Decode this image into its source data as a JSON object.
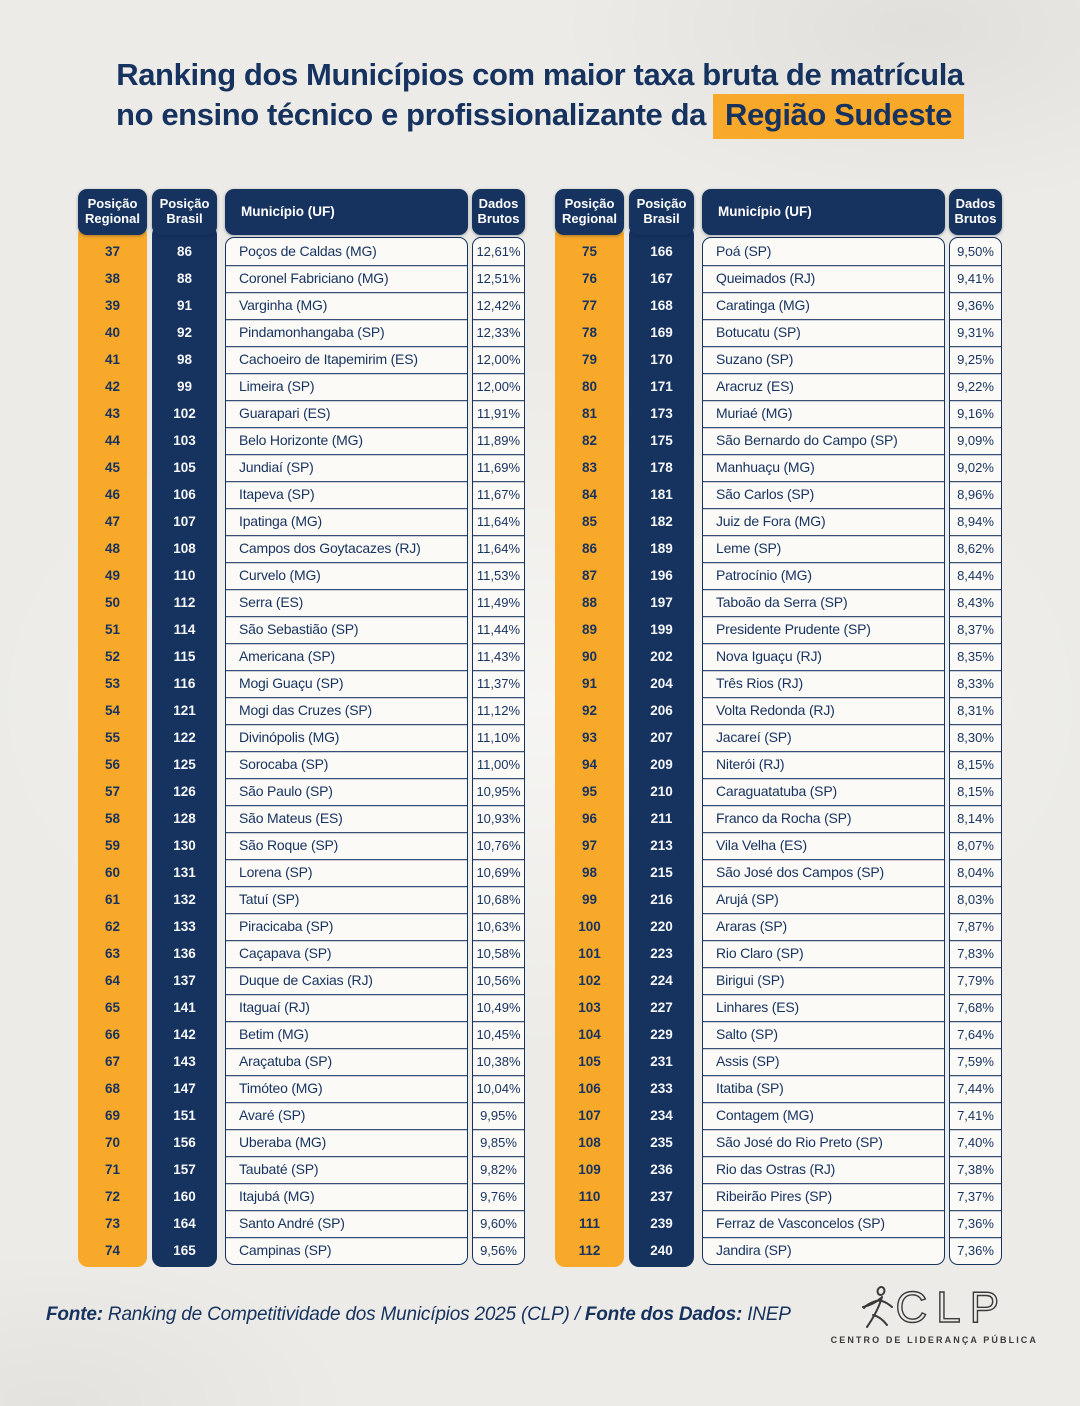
{
  "title": {
    "line1": "Ranking dos Municípios com maior taxa bruta de matrícula",
    "line2": "no ensino técnico e profissionalizante da",
    "highlight": "Região Sudeste"
  },
  "table_headers": {
    "regional": "Posição Regional",
    "brasil": "Posição Brasil",
    "municipio": "Município (UF)",
    "dados": "Dados Brutos"
  },
  "chart_data": {
    "type": "table",
    "title": "Ranking dos Municípios com maior taxa bruta de matrícula no ensino técnico e profissionalizante da Região Sudeste",
    "columns": [
      "Posição Regional",
      "Posição Brasil",
      "Município (UF)",
      "Dados Brutos"
    ],
    "rows_left": [
      [
        "37",
        "86",
        "Poços de Caldas (MG)",
        "12,61%"
      ],
      [
        "38",
        "88",
        "Coronel Fabriciano (MG)",
        "12,51%"
      ],
      [
        "39",
        "91",
        "Varginha (MG)",
        "12,42%"
      ],
      [
        "40",
        "92",
        "Pindamonhangaba (SP)",
        "12,33%"
      ],
      [
        "41",
        "98",
        "Cachoeiro de Itapemirim (ES)",
        "12,00%"
      ],
      [
        "42",
        "99",
        "Limeira (SP)",
        "12,00%"
      ],
      [
        "43",
        "102",
        "Guarapari (ES)",
        "11,91%"
      ],
      [
        "44",
        "103",
        "Belo Horizonte (MG)",
        "11,89%"
      ],
      [
        "45",
        "105",
        "Jundiaí (SP)",
        "11,69%"
      ],
      [
        "46",
        "106",
        "Itapeva (SP)",
        "11,67%"
      ],
      [
        "47",
        "107",
        "Ipatinga (MG)",
        "11,64%"
      ],
      [
        "48",
        "108",
        "Campos dos Goytacazes (RJ)",
        "11,64%"
      ],
      [
        "49",
        "110",
        "Curvelo (MG)",
        "11,53%"
      ],
      [
        "50",
        "112",
        "Serra (ES)",
        "11,49%"
      ],
      [
        "51",
        "114",
        "São Sebastião (SP)",
        "11,44%"
      ],
      [
        "52",
        "115",
        "Americana (SP)",
        "11,43%"
      ],
      [
        "53",
        "116",
        "Mogi Guaçu (SP)",
        "11,37%"
      ],
      [
        "54",
        "121",
        "Mogi das Cruzes (SP)",
        "11,12%"
      ],
      [
        "55",
        "122",
        "Divinópolis (MG)",
        "11,10%"
      ],
      [
        "56",
        "125",
        "Sorocaba (SP)",
        "11,00%"
      ],
      [
        "57",
        "126",
        "São Paulo (SP)",
        "10,95%"
      ],
      [
        "58",
        "128",
        "São Mateus (ES)",
        "10,93%"
      ],
      [
        "59",
        "130",
        "São Roque (SP)",
        "10,76%"
      ],
      [
        "60",
        "131",
        "Lorena (SP)",
        "10,69%"
      ],
      [
        "61",
        "132",
        "Tatuí (SP)",
        "10,68%"
      ],
      [
        "62",
        "133",
        "Piracicaba (SP)",
        "10,63%"
      ],
      [
        "63",
        "136",
        "Caçapava (SP)",
        "10,58%"
      ],
      [
        "64",
        "137",
        "Duque de Caxias (RJ)",
        "10,56%"
      ],
      [
        "65",
        "141",
        "Itaguaí (RJ)",
        "10,49%"
      ],
      [
        "66",
        "142",
        "Betim (MG)",
        "10,45%"
      ],
      [
        "67",
        "143",
        "Araçatuba (SP)",
        "10,38%"
      ],
      [
        "68",
        "147",
        "Timóteo (MG)",
        "10,04%"
      ],
      [
        "69",
        "151",
        "Avaré (SP)",
        "9,95%"
      ],
      [
        "70",
        "156",
        "Uberaba (MG)",
        "9,85%"
      ],
      [
        "71",
        "157",
        "Taubaté (SP)",
        "9,82%"
      ],
      [
        "72",
        "160",
        "Itajubá (MG)",
        "9,76%"
      ],
      [
        "73",
        "164",
        "Santo André (SP)",
        "9,60%"
      ],
      [
        "74",
        "165",
        "Campinas (SP)",
        "9,56%"
      ]
    ],
    "rows_right": [
      [
        "75",
        "166",
        "Poá (SP)",
        "9,50%"
      ],
      [
        "76",
        "167",
        "Queimados (RJ)",
        "9,41%"
      ],
      [
        "77",
        "168",
        "Caratinga (MG)",
        "9,36%"
      ],
      [
        "78",
        "169",
        "Botucatu (SP)",
        "9,31%"
      ],
      [
        "79",
        "170",
        "Suzano (SP)",
        "9,25%"
      ],
      [
        "80",
        "171",
        "Aracruz (ES)",
        "9,22%"
      ],
      [
        "81",
        "173",
        "Muriaé (MG)",
        "9,16%"
      ],
      [
        "82",
        "175",
        "São Bernardo do Campo (SP)",
        "9,09%"
      ],
      [
        "83",
        "178",
        "Manhuaçu (MG)",
        "9,02%"
      ],
      [
        "84",
        "181",
        "São Carlos (SP)",
        "8,96%"
      ],
      [
        "85",
        "182",
        "Juiz de Fora (MG)",
        "8,94%"
      ],
      [
        "86",
        "189",
        "Leme (SP)",
        "8,62%"
      ],
      [
        "87",
        "196",
        "Patrocínio (MG)",
        "8,44%"
      ],
      [
        "88",
        "197",
        "Taboão da Serra (SP)",
        "8,43%"
      ],
      [
        "89",
        "199",
        "Presidente Prudente (SP)",
        "8,37%"
      ],
      [
        "90",
        "202",
        "Nova Iguaçu (RJ)",
        "8,35%"
      ],
      [
        "91",
        "204",
        "Três Rios (RJ)",
        "8,33%"
      ],
      [
        "92",
        "206",
        "Volta Redonda (RJ)",
        "8,31%"
      ],
      [
        "93",
        "207",
        "Jacareí (SP)",
        "8,30%"
      ],
      [
        "94",
        "209",
        "Niterói (RJ)",
        "8,15%"
      ],
      [
        "95",
        "210",
        "Caraguatatuba (SP)",
        "8,15%"
      ],
      [
        "96",
        "211",
        "Franco da Rocha (SP)",
        "8,14%"
      ],
      [
        "97",
        "213",
        "Vila Velha (ES)",
        "8,07%"
      ],
      [
        "98",
        "215",
        "São José dos Campos (SP)",
        "8,04%"
      ],
      [
        "99",
        "216",
        "Arujá (SP)",
        "8,03%"
      ],
      [
        "100",
        "220",
        "Araras (SP)",
        "7,87%"
      ],
      [
        "101",
        "223",
        "Rio Claro (SP)",
        "7,83%"
      ],
      [
        "102",
        "224",
        "Birigui (SP)",
        "7,79%"
      ],
      [
        "103",
        "227",
        "Linhares (ES)",
        "7,68%"
      ],
      [
        "104",
        "229",
        "Salto (SP)",
        "7,64%"
      ],
      [
        "105",
        "231",
        "Assis (SP)",
        "7,59%"
      ],
      [
        "106",
        "233",
        "Itatiba (SP)",
        "7,44%"
      ],
      [
        "107",
        "234",
        "Contagem (MG)",
        "7,41%"
      ],
      [
        "108",
        "235",
        "São José do Rio Preto (SP)",
        "7,40%"
      ],
      [
        "109",
        "236",
        "Rio das Ostras (RJ)",
        "7,38%"
      ],
      [
        "110",
        "237",
        "Ribeirão Pires (SP)",
        "7,37%"
      ],
      [
        "111",
        "239",
        "Ferraz de Vasconcelos (SP)",
        "7,36%"
      ],
      [
        "112",
        "240",
        "Jandira (SP)",
        "7,36%"
      ]
    ]
  },
  "footer": {
    "fonte_label": "Fonte:",
    "fonte_text": " Ranking de Competitividade dos Municípios 2025 (CLP) / ",
    "dados_label": "Fonte dos Dados:",
    "dados_text": " INEP"
  },
  "logo": {
    "text": "CLP",
    "subtext": "CENTRO DE LIDERANÇA PÚBLICA"
  },
  "colors": {
    "navy": "#16325F",
    "yellow": "#F9A929",
    "paper": "#ECEBE7",
    "cell_bg": "#FBFAF7"
  }
}
